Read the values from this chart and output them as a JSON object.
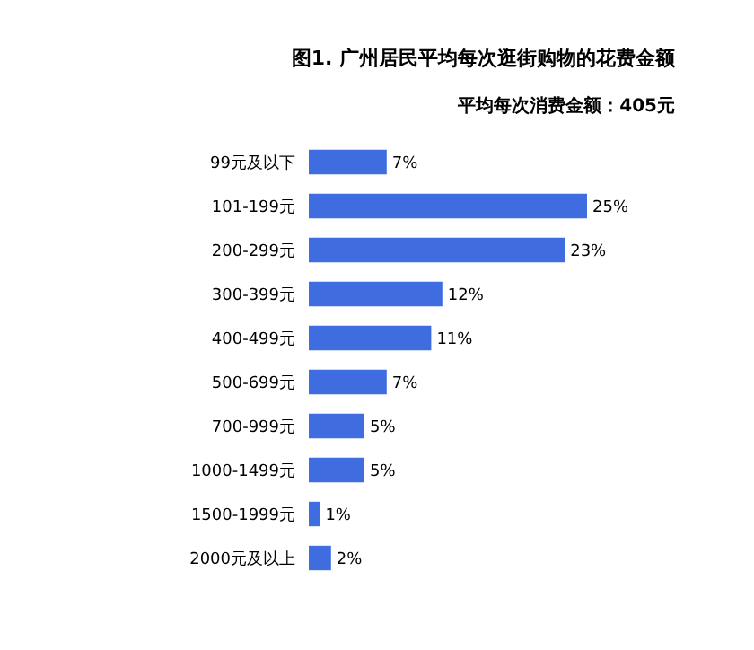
{
  "chart_data": {
    "type": "bar",
    "orientation": "horizontal",
    "title": "图1. 广州居民平均每次逛街购物的花费金额",
    "subtitle": "平均每次消费金额：405元",
    "categories": [
      "99元及以下",
      "101-199元",
      "200-299元",
      "300-399元",
      "400-499元",
      "500-699元",
      "700-999元",
      "1000-1499元",
      "1500-1999元",
      "2000元及以上"
    ],
    "values": [
      7,
      25,
      23,
      12,
      11,
      7,
      5,
      5,
      1,
      2
    ],
    "value_labels": [
      "7%",
      "25%",
      "23%",
      "12%",
      "11%",
      "7%",
      "5%",
      "5%",
      "1%",
      "2%"
    ],
    "color": "#3f6de0"
  }
}
